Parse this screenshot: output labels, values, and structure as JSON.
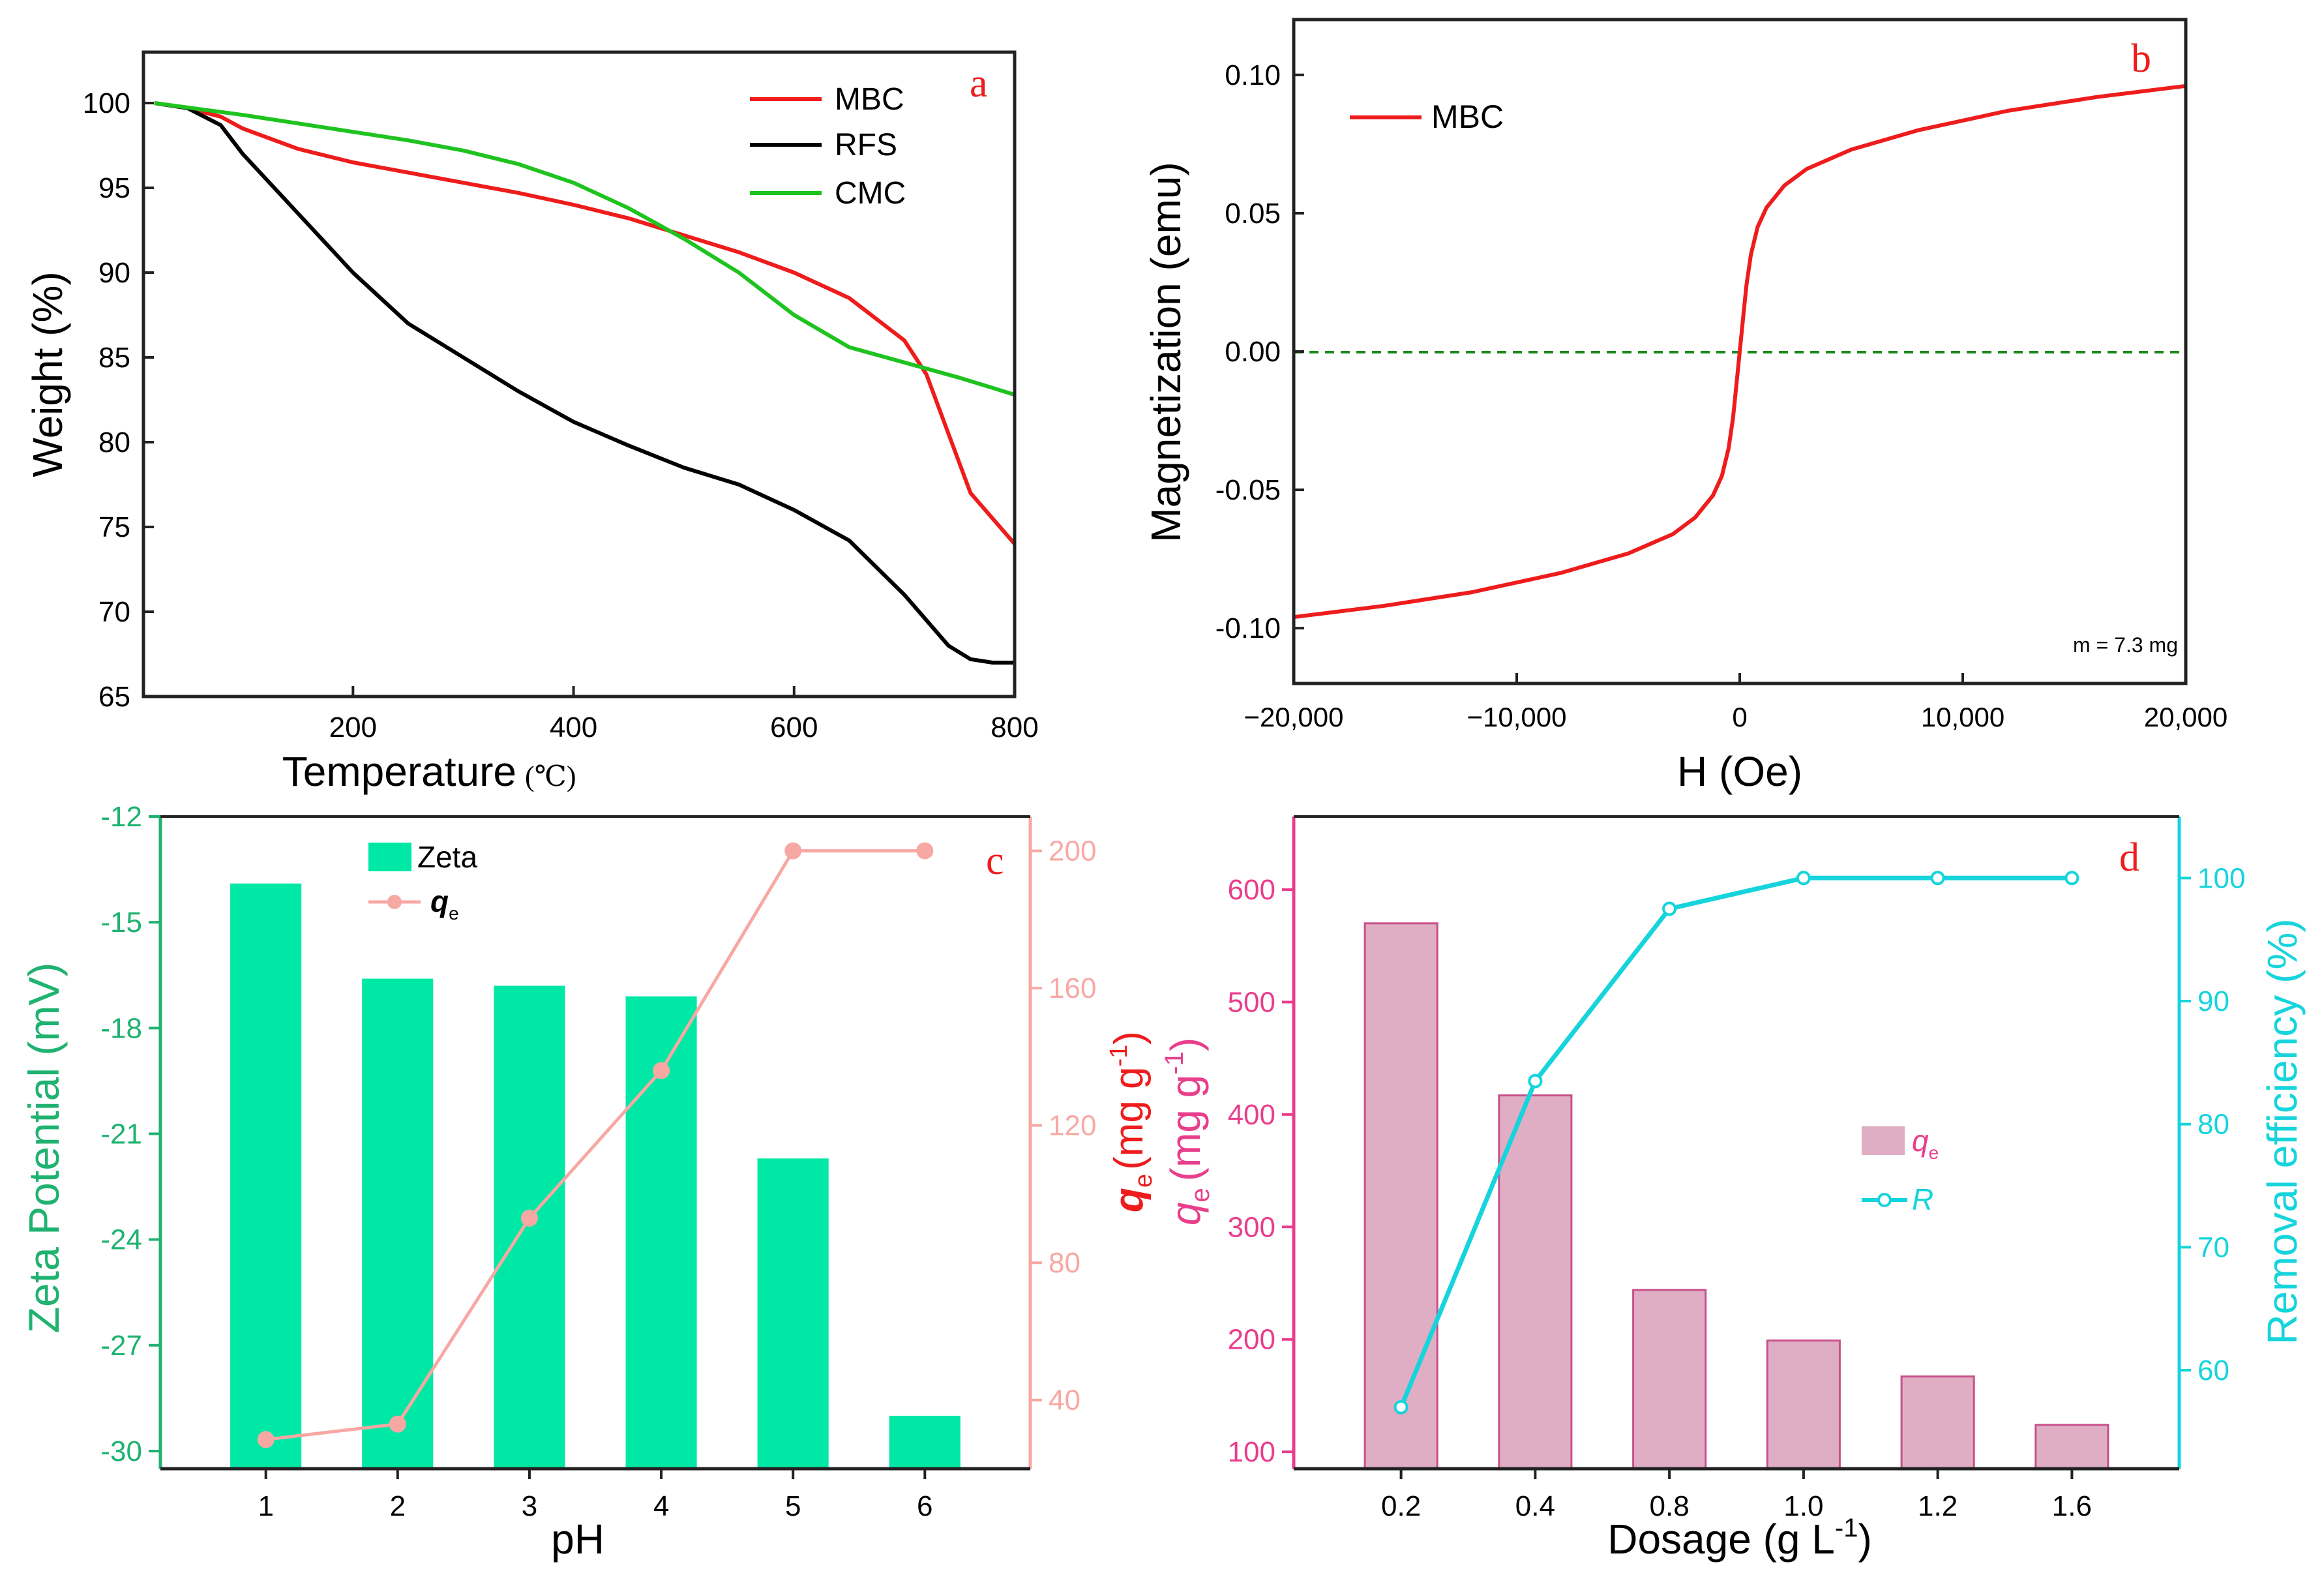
{
  "chart_data": [
    {
      "panel_label": "a",
      "type": "line",
      "xlabel": "Temperature",
      "xunit": "(℃)",
      "ylabel": "Weight (%)",
      "xlim": [
        10,
        800
      ],
      "ylim": [
        65,
        103
      ],
      "xticks": [
        200,
        400,
        600,
        800
      ],
      "yticks": [
        65,
        70,
        75,
        80,
        85,
        90,
        95,
        100
      ],
      "legend_position": "top-right",
      "series": [
        {
          "name": "MBC",
          "color": "#ee1c1c",
          "x": [
            20,
            50,
            80,
            100,
            150,
            200,
            250,
            300,
            350,
            400,
            450,
            500,
            550,
            600,
            650,
            700,
            720,
            740,
            760,
            780,
            800
          ],
          "y": [
            100,
            99.7,
            99.2,
            98.5,
            97.3,
            96.5,
            95.9,
            95.3,
            94.7,
            94.0,
            93.2,
            92.2,
            91.2,
            90.0,
            88.5,
            86.0,
            84.0,
            80.5,
            77.0,
            75.5,
            74.0
          ]
        },
        {
          "name": "RFS",
          "color": "#000000",
          "x": [
            20,
            50,
            80,
            100,
            150,
            200,
            250,
            300,
            350,
            400,
            450,
            500,
            550,
            600,
            650,
            700,
            720,
            740,
            760,
            780,
            800
          ],
          "y": [
            100,
            99.7,
            98.7,
            97.0,
            93.5,
            90.0,
            87.0,
            85.0,
            83.0,
            81.2,
            79.8,
            78.5,
            77.5,
            76.0,
            74.2,
            71.0,
            69.5,
            68.0,
            67.2,
            67.0,
            67.0
          ]
        },
        {
          "name": "CMC",
          "color": "#1fc31f",
          "x": [
            20,
            100,
            150,
            200,
            250,
            300,
            350,
            400,
            450,
            500,
            550,
            600,
            650,
            700,
            750,
            800
          ],
          "y": [
            100,
            99.3,
            98.8,
            98.3,
            97.8,
            97.2,
            96.4,
            95.3,
            93.8,
            92.0,
            90.0,
            87.5,
            85.6,
            84.7,
            83.8,
            82.8
          ]
        }
      ]
    },
    {
      "panel_label": "b",
      "type": "line",
      "xlabel": "H (Oe)",
      "ylabel": "Magnetization (emu)",
      "xlim": [
        -20000,
        20000
      ],
      "ylim": [
        -0.12,
        0.12
      ],
      "xticks": [
        -20000,
        -10000,
        0,
        10000,
        20000
      ],
      "xtick_labels": [
        "−20,000",
        "−10,000",
        "0",
        "10,000",
        "20,000"
      ],
      "yticks": [
        -0.1,
        -0.05,
        0.0,
        0.05,
        0.1
      ],
      "ytick_labels": [
        "-0.10",
        "-0.05",
        "0.00",
        "0.05",
        "0.10"
      ],
      "legend_position": "top-left",
      "annotation": "m = 7.3 mg",
      "zero_line": true,
      "series": [
        {
          "name": "MBC",
          "color": "#ee1c1c",
          "x": [
            -20000,
            -16000,
            -12000,
            -8000,
            -5000,
            -3000,
            -2000,
            -1200,
            -800,
            -500,
            -300,
            -150,
            0,
            150,
            300,
            500,
            800,
            1200,
            2000,
            3000,
            5000,
            8000,
            12000,
            16000,
            20000
          ],
          "y": [
            -0.096,
            -0.092,
            -0.087,
            -0.08,
            -0.073,
            -0.066,
            -0.06,
            -0.052,
            -0.045,
            -0.035,
            -0.024,
            -0.012,
            0.0,
            0.012,
            0.024,
            0.035,
            0.045,
            0.052,
            0.06,
            0.066,
            0.073,
            0.08,
            0.087,
            0.092,
            0.096
          ]
        }
      ]
    },
    {
      "panel_label": "c",
      "type": "bar",
      "xlabel": "pH",
      "ylabel": "Zeta Potential (mV)",
      "y2label_symbol": "q",
      "y2label_sub": "e",
      "y2label_unit": "(mg g",
      "y2label_sup": "-1",
      "y2label_close": ")",
      "categories": [
        "1",
        "2",
        "3",
        "4",
        "5",
        "6"
      ],
      "ylim": [
        -30.5,
        -12
      ],
      "yticks": [
        -30,
        -27,
        -24,
        -21,
        -18,
        -15,
        -12
      ],
      "y2lim": [
        20,
        210
      ],
      "y2ticks": [
        40,
        80,
        120,
        160,
        200
      ],
      "legend_position": "top-left",
      "series": [
        {
          "name": "Zeta",
          "kind": "bar",
          "axis": "left",
          "color": "#00e8a6",
          "values": [
            -13.9,
            -16.6,
            -16.8,
            -17.1,
            -21.7,
            -29.0
          ]
        },
        {
          "name": "q",
          "name_sub": "e",
          "kind": "line",
          "axis": "right",
          "color": "#f8a8a3",
          "values": [
            28.5,
            33,
            93,
            136,
            200,
            200
          ]
        }
      ]
    },
    {
      "panel_label": "d",
      "type": "bar",
      "xlabel": "Dosage (g L",
      "xlabel_sup": "-1",
      "xlabel_close": ")",
      "ylabel_symbol": "q",
      "ylabel_sub": "e",
      "ylabel_unit": "(mg g",
      "ylabel_sup": "-1",
      "ylabel_close": ")",
      "y2label": "Removal efficiency (%)",
      "categories": [
        "0.2",
        "0.4",
        "0.8",
        "1.0",
        "1.2",
        "1.6"
      ],
      "ylim": [
        85,
        665
      ],
      "yticks": [
        100,
        200,
        300,
        400,
        500,
        600
      ],
      "y2lim": [
        52,
        105
      ],
      "y2ticks": [
        60,
        70,
        80,
        90,
        100
      ],
      "legend_position": "center-right",
      "series": [
        {
          "name": "q",
          "name_sub": "e",
          "kind": "bar",
          "axis": "left",
          "color": "#dfaec4",
          "values": [
            570,
            417,
            244,
            199,
            167,
            124
          ]
        },
        {
          "name": "R",
          "kind": "line",
          "axis": "right",
          "color": "#16d4dc",
          "values": [
            57,
            83.5,
            97.5,
            100,
            100,
            100
          ]
        }
      ]
    }
  ]
}
